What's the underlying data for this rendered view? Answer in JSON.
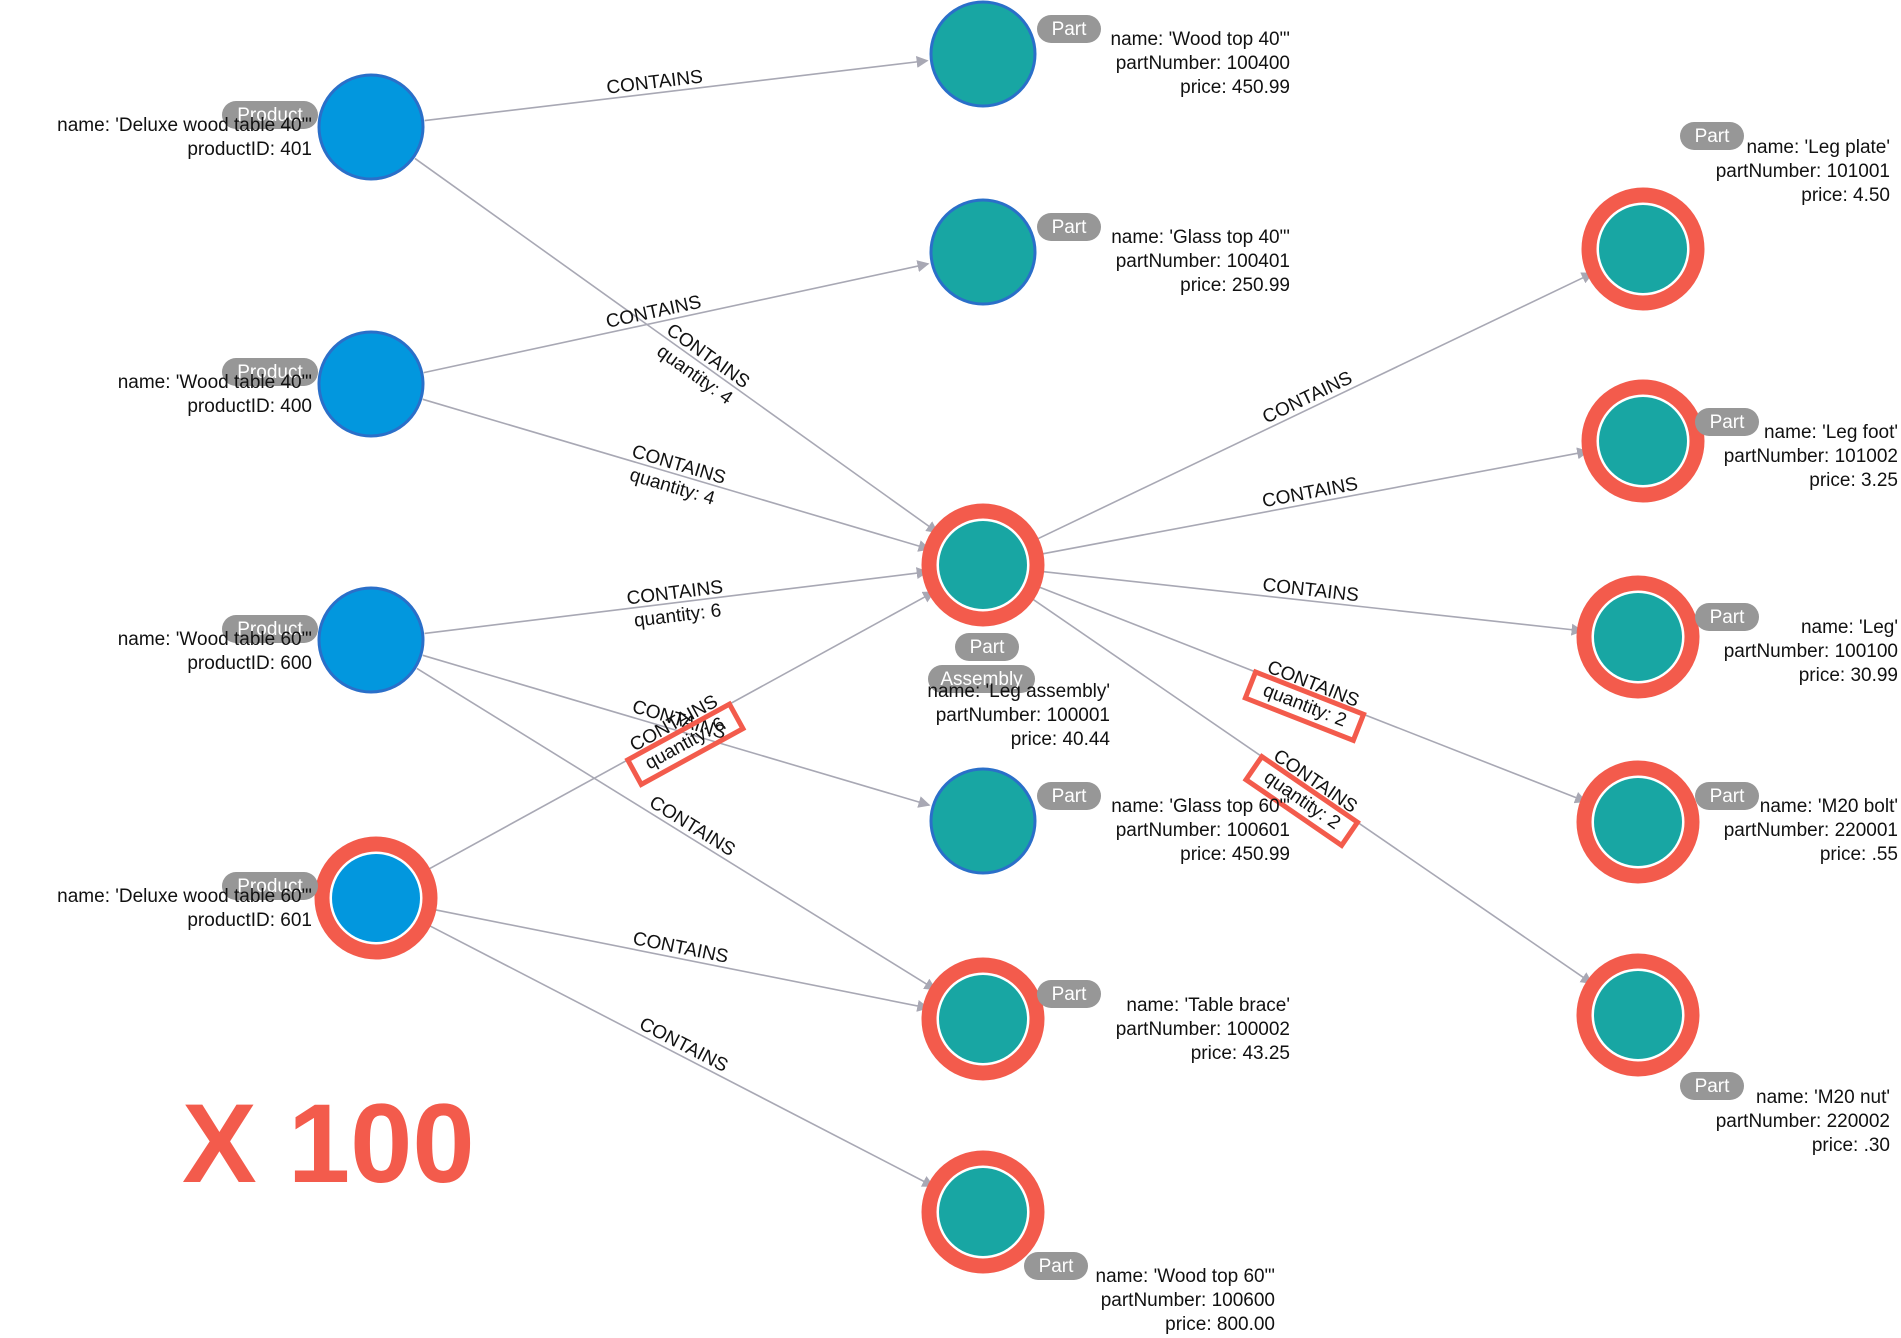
{
  "nodes": [
    {
      "id": "p401",
      "kind": "product",
      "label": "Product",
      "props": [
        "name: 'Deluxe wood table 40\"'",
        "productID: 401"
      ],
      "highlighted": false
    },
    {
      "id": "p400",
      "kind": "product",
      "label": "Product",
      "props": [
        "name: 'Wood table 40\"'",
        "productID: 400"
      ],
      "highlighted": false
    },
    {
      "id": "p600",
      "kind": "product",
      "label": "Product",
      "props": [
        "name: 'Wood table 60\"'",
        "productID: 600"
      ],
      "highlighted": false
    },
    {
      "id": "p601",
      "kind": "product",
      "label": "Product",
      "props": [
        "name: 'Deluxe wood table 60\"'",
        "productID: 601"
      ],
      "highlighted": true
    },
    {
      "id": "w40",
      "kind": "part",
      "label": "Part",
      "props": [
        "name: 'Wood top 40\"'",
        "partNumber: 100400",
        "price: 450.99"
      ],
      "highlighted": false
    },
    {
      "id": "g40",
      "kind": "part",
      "label": "Part",
      "props": [
        "name: 'Glass top 40\"'",
        "partNumber: 100401",
        "price: 250.99"
      ],
      "highlighted": false
    },
    {
      "id": "asm",
      "kind": "part",
      "label": "Part",
      "label2": "Assembly",
      "props": [
        "name: 'Leg assembly'",
        "partNumber: 100001",
        "price: 40.44"
      ],
      "highlighted": true
    },
    {
      "id": "g60",
      "kind": "part",
      "label": "Part",
      "props": [
        "name: 'Glass top 60\"'",
        "partNumber: 100601",
        "price: 450.99"
      ],
      "highlighted": false
    },
    {
      "id": "brace",
      "kind": "part",
      "label": "Part",
      "props": [
        "name: 'Table brace'",
        "partNumber: 100002",
        "price: 43.25"
      ],
      "highlighted": true
    },
    {
      "id": "w60",
      "kind": "part",
      "label": "Part",
      "props": [
        "name: 'Wood top 60\"'",
        "partNumber: 100600",
        "price: 800.00"
      ],
      "highlighted": true
    },
    {
      "id": "plate",
      "kind": "part",
      "label": "Part",
      "props": [
        "name: 'Leg plate'",
        "partNumber: 101001",
        "price: 4.50"
      ],
      "highlighted": true
    },
    {
      "id": "foot",
      "kind": "part",
      "label": "Part",
      "props": [
        "name: 'Leg foot'",
        "partNumber: 101002",
        "price: 3.25"
      ],
      "highlighted": true
    },
    {
      "id": "leg",
      "kind": "part",
      "label": "Part",
      "props": [
        "name: 'Leg'",
        "partNumber: 100100",
        "price: 30.99"
      ],
      "highlighted": true
    },
    {
      "id": "bolt",
      "kind": "part",
      "label": "Part",
      "props": [
        "name: 'M20 bolt'",
        "partNumber: 220001",
        "price: .55"
      ],
      "highlighted": true
    },
    {
      "id": "nut",
      "kind": "part",
      "label": "Part",
      "props": [
        "name: 'M20 nut'",
        "partNumber: 220002",
        "price: .30"
      ],
      "highlighted": true
    }
  ],
  "edges": [
    {
      "from": "p401",
      "to": "w40",
      "type": "CONTAINS",
      "quantity": ""
    },
    {
      "from": "p401",
      "to": "asm",
      "type": "CONTAINS",
      "quantity": "quantity: 4"
    },
    {
      "from": "p400",
      "to": "g40",
      "type": "CONTAINS",
      "quantity": ""
    },
    {
      "from": "p400",
      "to": "asm",
      "type": "CONTAINS",
      "quantity": "quantity: 4"
    },
    {
      "from": "p600",
      "to": "asm",
      "type": "CONTAINS",
      "quantity": "quantity: 6"
    },
    {
      "from": "p600",
      "to": "g60",
      "type": "CONTAINS",
      "quantity": ""
    },
    {
      "from": "p600",
      "to": "brace",
      "type": "CONTAINS",
      "quantity": ""
    },
    {
      "from": "p601",
      "to": "asm",
      "type": "CONTAINS",
      "quantity": "quantity: 6",
      "highlighted": true
    },
    {
      "from": "p601",
      "to": "brace",
      "type": "CONTAINS",
      "quantity": ""
    },
    {
      "from": "p601",
      "to": "w60",
      "type": "CONTAINS",
      "quantity": ""
    },
    {
      "from": "asm",
      "to": "plate",
      "type": "CONTAINS",
      "quantity": ""
    },
    {
      "from": "asm",
      "to": "foot",
      "type": "CONTAINS",
      "quantity": ""
    },
    {
      "from": "asm",
      "to": "leg",
      "type": "CONTAINS",
      "quantity": ""
    },
    {
      "from": "asm",
      "to": "bolt",
      "type": "CONTAINS",
      "quantity": "quantity: 2",
      "highlighted": true
    },
    {
      "from": "asm",
      "to": "nut",
      "type": "CONTAINS",
      "quantity": "quantity: 2",
      "highlighted": true
    }
  ],
  "multiplier": "X 100",
  "colors": {
    "product": "#0297de",
    "part": "#18a6a3",
    "highlight": "#f35b4c",
    "edge": "#a8a8b4",
    "pill": "#979797"
  }
}
